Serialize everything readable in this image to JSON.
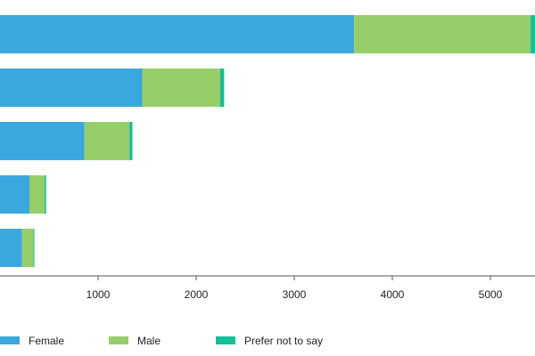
{
  "chart_data": {
    "type": "bar",
    "orientation": "horizontal",
    "stacked": true,
    "title": "",
    "xlabel": "",
    "ylabel": "",
    "categories": [
      "",
      "",
      "",
      "",
      ""
    ],
    "series": [
      {
        "name": "Female",
        "color": "#3aa8dc",
        "values": [
          3610,
          1450,
          860,
          300,
          225
        ]
      },
      {
        "name": "Male",
        "color": "#96cf6a",
        "values": [
          1800,
          795,
          460,
          155,
          115
        ]
      },
      {
        "name": "Prefer not to say",
        "color": "#12bf96",
        "values": [
          80,
          40,
          30,
          15,
          10
        ]
      }
    ],
    "xlim": [
      0,
      5500
    ],
    "x_ticks": [
      1000,
      2000,
      3000,
      4000,
      5000
    ],
    "x_tick_labels": [
      "1000",
      "2000",
      "3000",
      "4000",
      "5000"
    ],
    "grid": false,
    "legend_position": "bottom"
  }
}
